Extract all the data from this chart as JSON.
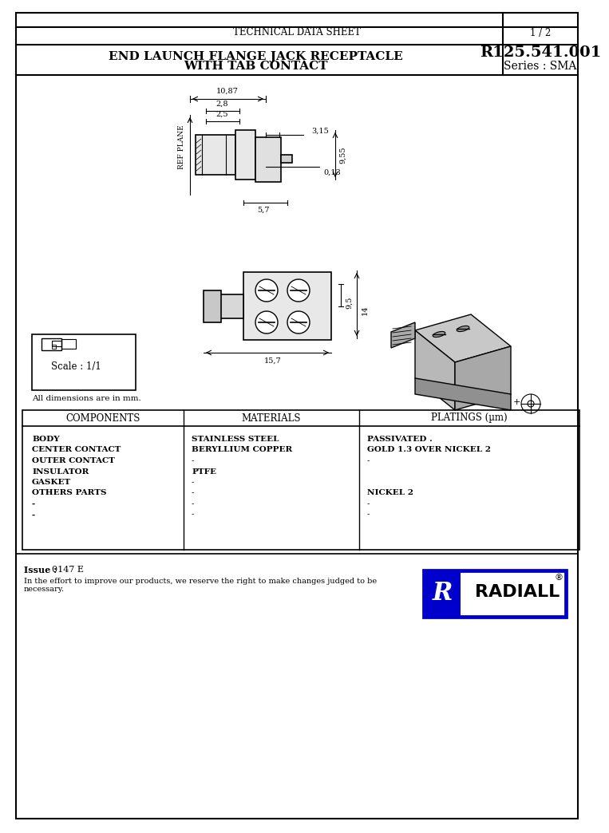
{
  "page_bg": "#ffffff",
  "border_color": "#000000",
  "title_header": "TECHNICAL DATA SHEET",
  "page_number": "1 / 2",
  "product_title_line1": "END LAUNCH FLANGE JACK RECEPTACLE",
  "product_title_line2": "WITH TAB CONTACT",
  "part_number": "R125.541.001",
  "series_label": "Series : SMA",
  "dim_note": "All dimensions are in mm.",
  "scale_label": "Scale : 1/1",
  "table_headers": [
    "COMPONENTS",
    "MATERIALS",
    "PLATINGS (µm)"
  ],
  "components": [
    "BODY",
    "CENTER CONTACT",
    "OUTER CONTACT",
    "INSULATOR",
    "GASKET",
    "OTHERS PARTS",
    "-",
    "-"
  ],
  "materials": [
    "STAINLESS STEEL",
    "BERYLLIUM COPPER",
    "-",
    "PTFE",
    "-",
    "-",
    "-",
    "-"
  ],
  "platings": [
    "PASSIVATED .",
    "GOLD 1.3 OVER NICKEL 2",
    "-",
    "",
    "",
    "NICKEL 2",
    "-",
    "-"
  ],
  "issue_label": "Issue :",
  "issue_value": "0147 E",
  "disclaimer": "In the effort to improve our products, we reserve the right to make changes judged to be\nnecessary.",
  "radiall_bg": "#0000cc",
  "radiall_text": "RADIALL",
  "dims_top": {
    "10_87": "10,87",
    "2_8": "2,8",
    "2_5": "2,5",
    "3_15": "3,15",
    "9_55": "9,55",
    "0_13": "0,13",
    "5_7": "5,7",
    "ref_plane": "REF PLANE"
  },
  "dims_bottom": {
    "9_5": "9,5",
    "14": "14",
    "15_7": "15,7"
  }
}
